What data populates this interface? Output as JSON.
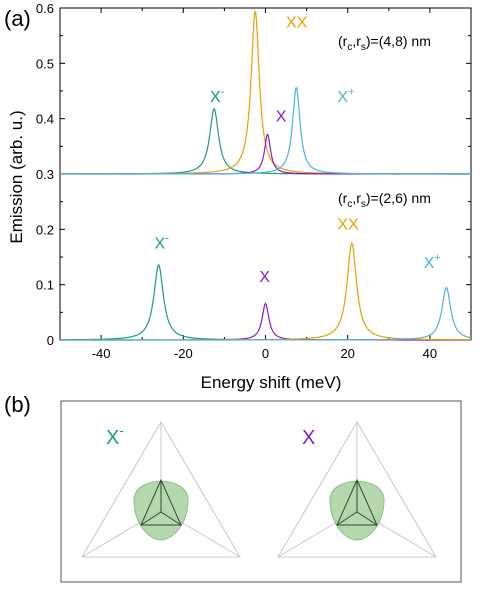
{
  "panel_a_label": "(a)",
  "panel_b_label": "(b)",
  "chart_data": {
    "type": "line",
    "xlabel": "Energy shift (meV)",
    "ylabel": "Emission (arb. u.)",
    "xlim": [
      -50,
      50
    ],
    "ylim": [
      0,
      0.6
    ],
    "xticks": [
      "-40",
      "-20",
      "0",
      "20",
      "40"
    ],
    "xtick_values": [
      -40,
      -20,
      0,
      20,
      40
    ],
    "yticks": [
      "0",
      "0.1",
      "0.2",
      "0.3",
      "0.4",
      "0.5",
      "0.6"
    ],
    "ytick_values": [
      0,
      0.1,
      0.2,
      0.3,
      0.4,
      0.5,
      0.6
    ],
    "grid": false,
    "colors": {
      "X-": "#1a9e77",
      "X": "#8b19c9",
      "XX": "#e6a100",
      "X+": "#4bb3dc"
    },
    "groups": [
      {
        "annotation": "(r",
        "annotation_sub1": "c",
        "annotation_mid": ",r",
        "annotation_sub2": "s",
        "annotation_end": ")=(4,8) nm",
        "baseline": 0.3,
        "series": [
          {
            "label": "X",
            "sup": "-",
            "key": "X-",
            "center": -12.5,
            "peak": 0.418,
            "width": 1.3,
            "label_x": -13.5,
            "label_y": 0.43
          },
          {
            "label": "XX",
            "sup": "",
            "key": "XX",
            "center": -2.5,
            "peak": 0.595,
            "width": 1.2,
            "label_x": 5,
            "label_y": 0.565
          },
          {
            "label": "X",
            "sup": "",
            "key": "X",
            "center": 0.5,
            "peak": 0.372,
            "width": 0.9,
            "label_x": 2.5,
            "label_y": 0.395
          },
          {
            "label": "X",
            "sup": "+",
            "key": "X+",
            "center": 7.5,
            "peak": 0.457,
            "width": 1.1,
            "label_x": 17.5,
            "label_y": 0.43
          }
        ]
      },
      {
        "annotation": "(r",
        "annotation_sub1": "c",
        "annotation_mid": ",r",
        "annotation_sub2": "s",
        "annotation_end": ")=(2,6) nm",
        "baseline": 0,
        "series": [
          {
            "label": "X",
            "sup": "-",
            "key": "X-",
            "center": -26,
            "peak": 0.136,
            "width": 1.4,
            "label_x": -27,
            "label_y": 0.165
          },
          {
            "label": "X",
            "sup": "",
            "key": "X",
            "center": 0,
            "peak": 0.066,
            "width": 1.0,
            "label_x": -1.5,
            "label_y": 0.105
          },
          {
            "label": "XX",
            "sup": "",
            "key": "XX",
            "center": 21,
            "peak": 0.175,
            "width": 1.4,
            "label_x": 17.5,
            "label_y": 0.2
          },
          {
            "label": "X",
            "sup": "+",
            "key": "X+",
            "center": 44,
            "peak": 0.095,
            "width": 1.3,
            "label_x": 38.5,
            "label_y": 0.13
          }
        ]
      }
    ]
  },
  "panel_b": {
    "insets": [
      {
        "label": "X",
        "sup": "-",
        "key": "X-"
      },
      {
        "label": "X",
        "sup": "",
        "key": "X"
      }
    ]
  }
}
